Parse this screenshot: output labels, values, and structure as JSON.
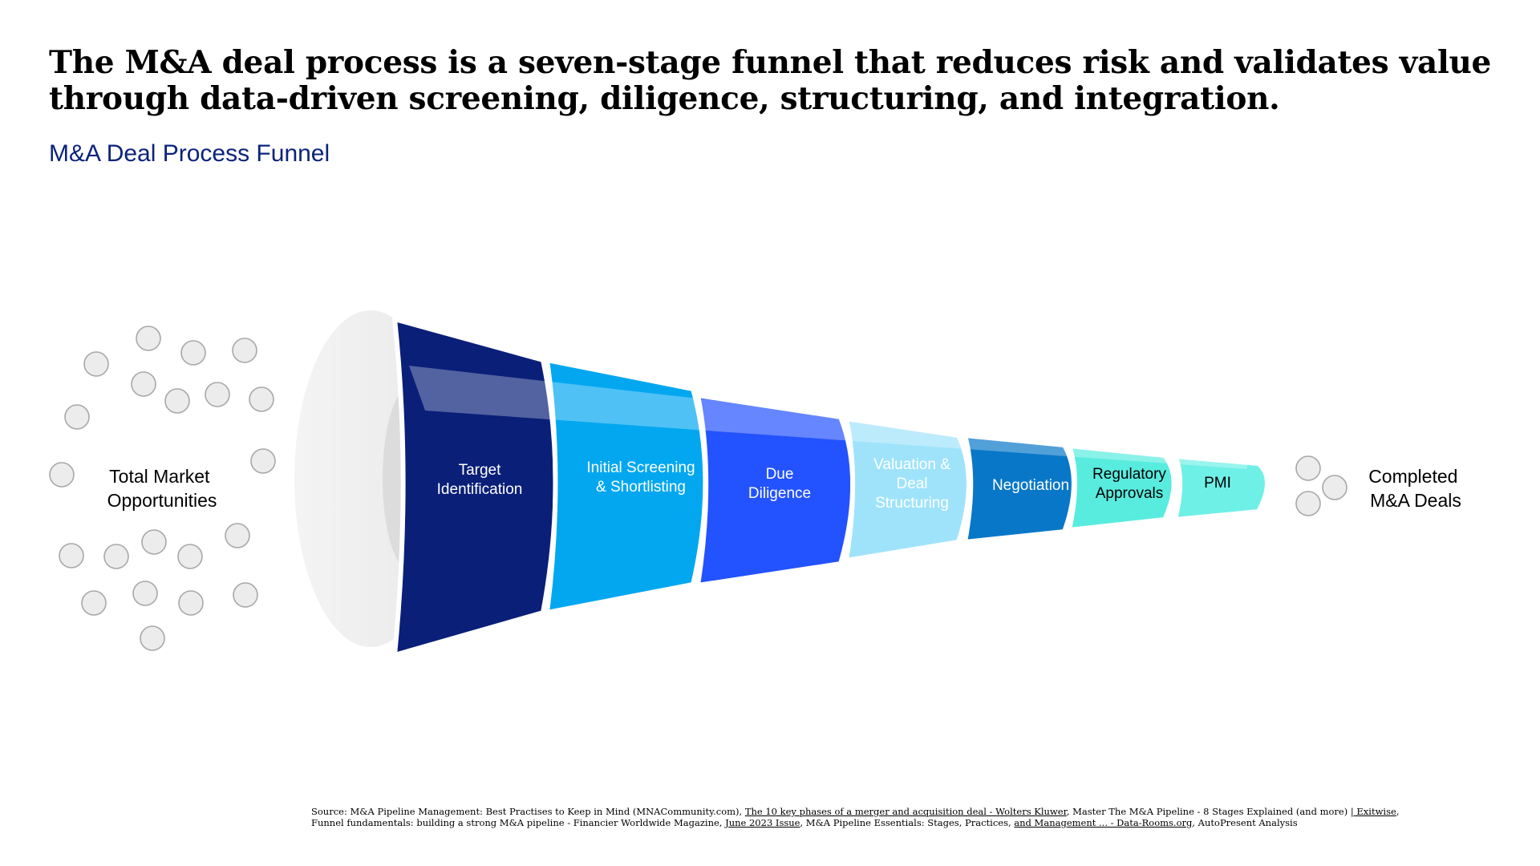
{
  "headline": {
    "line1": "The M&A deal process is a seven-stage funnel that reduces risk and validates value",
    "line2": "through data-driven screening, diligence, structuring, and integration."
  },
  "subtitle": "M&A Deal Process Funnel",
  "funnel": {
    "input_label": [
      "Total Market",
      "Opportunities"
    ],
    "output_label": [
      "Completed",
      "M&A Deals"
    ],
    "stages": [
      {
        "lines": [
          "Target",
          "Identification"
        ],
        "color": "#0a1f78",
        "text_color": "#ffffff"
      },
      {
        "lines": [
          "Initial Screening",
          "& Shortlisting"
        ],
        "color": "#03a7f0",
        "text_color": "#ffffff"
      },
      {
        "lines": [
          "Due",
          "Diligence"
        ],
        "color": "#2352ff",
        "text_color": "#ffffff"
      },
      {
        "lines": [
          "Valuation &",
          "Deal",
          "Structuring"
        ],
        "color": "#9fe3fb",
        "text_color": "#ffffff"
      },
      {
        "lines": [
          "Negotiation"
        ],
        "color": "#0877c8",
        "text_color": "#ffffff"
      },
      {
        "lines": [
          "Regulatory",
          "Approvals"
        ],
        "color": "#58ecdf",
        "text_color": "#000000"
      },
      {
        "lines": [
          "PMI"
        ],
        "color": "#6ff0e6",
        "text_color": "#000000"
      }
    ],
    "mouth_color": "#f1f1f1",
    "dot_color": "#ececec",
    "dot_stroke": "#a8a8a8"
  },
  "source": {
    "parts": [
      {
        "text": "Source: M&A Pipeline Management: Best Practises to Keep in Mind (MNACommunity.com), ",
        "underline": false
      },
      {
        "text": "The 10 key phases of a merger and acquisition deal - Wolters Kluwer",
        "underline": true
      },
      {
        "text": ", Master The M&A Pipeline - 8 Stages Explained (and more) ",
        "underline": false
      },
      {
        "text": "| Exitwise",
        "underline": true
      },
      {
        "text": ", Funnel fundamentals: building a strong M&A pipeline - Financier Worldwide Magazine, ",
        "underline": false
      },
      {
        "text": "June 2023 Issue",
        "underline": true
      },
      {
        "text": ", M&A Pipeline Essentials: Stages, Practices, ",
        "underline": false
      },
      {
        "text": "and Management ... - Data-Rooms.org",
        "underline": true
      },
      {
        "text": ", AutoPresent Analysis",
        "underline": false
      }
    ]
  }
}
